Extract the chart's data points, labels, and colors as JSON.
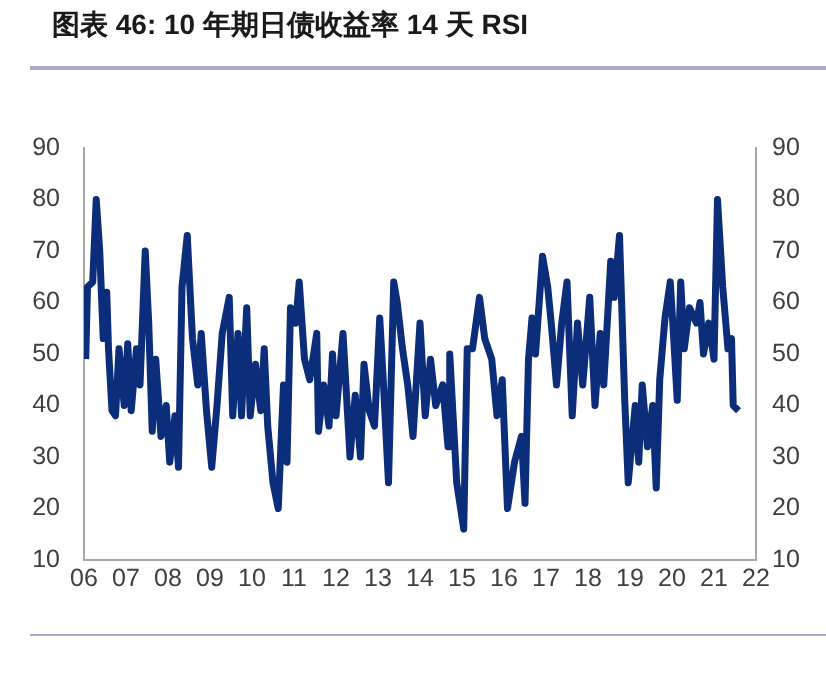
{
  "chart_data": {
    "type": "line",
    "title": "图表 46: 10 年期日债收益率 14 天 RSI",
    "series": [
      {
        "color": "#0b2d7a",
        "x": [
          "2006-01-16",
          "2006-02-01",
          "2006-03-16",
          "2006-04-16",
          "2006-05-16",
          "2006-06-16",
          "2006-07-16",
          "2006-08-01",
          "2006-09-01",
          "2006-10-01",
          "2006-11-01",
          "2006-12-16",
          "2007-01-16",
          "2007-02-16",
          "2007-04-01",
          "2007-05-01",
          "2007-06-16",
          "2007-07-16",
          "2007-08-16",
          "2007-09-16",
          "2007-11-01",
          "2007-12-16",
          "2008-01-16",
          "2008-03-01",
          "2008-04-01",
          "2008-05-01",
          "2008-06-16",
          "2008-08-01",
          "2008-09-16",
          "2008-10-16",
          "2008-12-01",
          "2009-01-16",
          "2009-03-01",
          "2009-04-16",
          "2009-06-16",
          "2009-07-16",
          "2009-09-01",
          "2009-10-01",
          "2009-11-16",
          "2009-12-16",
          "2010-02-01",
          "2010-03-16",
          "2010-04-16",
          "2010-05-16",
          "2010-07-01",
          "2010-08-16",
          "2010-10-01",
          "2010-11-01",
          "2010-12-01",
          "2011-01-16",
          "2011-02-16",
          "2011-04-01",
          "2011-05-16",
          "2011-07-16",
          "2011-08-01",
          "2011-09-16",
          "2011-11-01",
          "2011-12-01",
          "2012-01-01",
          "2012-03-01",
          "2012-05-01",
          "2012-06-16",
          "2012-08-01",
          "2012-09-01",
          "2012-10-16",
          "2012-12-01",
          "2013-01-16",
          "2013-02-16",
          "2013-04-01",
          "2013-05-16",
          "2013-06-16",
          "2013-08-01",
          "2013-09-16",
          "2013-11-01",
          "2014-01-01",
          "2014-02-16",
          "2014-04-01",
          "2014-05-16",
          "2014-07-16",
          "2014-09-01",
          "2014-09-16",
          "2014-11-16",
          "2015-01-16",
          "2015-02-16",
          "2015-04-01",
          "2015-06-01",
          "2015-07-16",
          "2015-09-16",
          "2015-11-01",
          "2015-12-16",
          "2016-02-01",
          "2016-04-01",
          "2016-06-01",
          "2016-07-01",
          "2016-08-01",
          "2016-09-01",
          "2016-10-01",
          "2016-12-01",
          "2017-01-16",
          "2017-02-16",
          "2017-04-01",
          "2017-05-16",
          "2017-07-01",
          "2017-08-16",
          "2017-10-01",
          "2017-11-16",
          "2018-01-16",
          "2018-03-01",
          "2018-04-16",
          "2018-05-16",
          "2018-07-16",
          "2018-08-16",
          "2018-10-01",
          "2018-11-16",
          "2018-12-16",
          "2019-02-16",
          "2019-03-16",
          "2019-04-16",
          "2019-06-01",
          "2019-07-16",
          "2019-08-16",
          "2019-09-16",
          "2019-11-01",
          "2019-12-16",
          "2020-01-16",
          "2020-02-16",
          "2020-03-16",
          "2020-04-16",
          "2020-06-01",
          "2020-08-01",
          "2020-09-01",
          "2020-10-01",
          "2020-11-16",
          "2021-01-01",
          "2021-02-01",
          "2021-03-16",
          "2021-05-01",
          "2021-06-01",
          "2021-06-16",
          "2021-08-01"
        ],
        "values": [
          49,
          63,
          64,
          80,
          70,
          53,
          62,
          51,
          39,
          38,
          51,
          40,
          52,
          39,
          51,
          44,
          70,
          56,
          35,
          49,
          34,
          40,
          29,
          38,
          28,
          63,
          73,
          53,
          44,
          54,
          39,
          28,
          40,
          54,
          61,
          38,
          54,
          38,
          59,
          38,
          48,
          39,
          51,
          36,
          25,
          20,
          44,
          29,
          59,
          56,
          64,
          49,
          45,
          54,
          35,
          44,
          36,
          50,
          38,
          54,
          30,
          42,
          30,
          48,
          39,
          36,
          57,
          45,
          25,
          64,
          60,
          51,
          44,
          34,
          56,
          38,
          49,
          40,
          44,
          32,
          50,
          25,
          16,
          51,
          51,
          61,
          53,
          49,
          38,
          45,
          20,
          29,
          34,
          21,
          49,
          57,
          50,
          69,
          63,
          56,
          44,
          56,
          64,
          38,
          56,
          44,
          61,
          40,
          54,
          44,
          68,
          61,
          73,
          41,
          25,
          40,
          29,
          44,
          32,
          40,
          24,
          45,
          57,
          64,
          53,
          41,
          64,
          51,
          59,
          56,
          60,
          50,
          56,
          49,
          80,
          63,
          51,
          53,
          40,
          39
        ]
      }
    ],
    "xlim": [
      "2006",
      "2022"
    ],
    "xticks": [
      {
        "value": "2006",
        "label": "06"
      },
      {
        "value": "2007",
        "label": "07"
      },
      {
        "value": "2008",
        "label": "08"
      },
      {
        "value": "2009",
        "label": "09"
      },
      {
        "value": "2010",
        "label": "10"
      },
      {
        "value": "2011",
        "label": "11"
      },
      {
        "value": "2012",
        "label": "12"
      },
      {
        "value": "2013",
        "label": "13"
      },
      {
        "value": "2014",
        "label": "14"
      },
      {
        "value": "2015",
        "label": "15"
      },
      {
        "value": "2016",
        "label": "16"
      },
      {
        "value": "2017",
        "label": "17"
      },
      {
        "value": "2018",
        "label": "18"
      },
      {
        "value": "2019",
        "label": "19"
      },
      {
        "value": "2020",
        "label": "20"
      },
      {
        "value": "2021",
        "label": "21"
      },
      {
        "value": "2022",
        "label": "22"
      }
    ],
    "ylim": [
      10,
      90
    ],
    "yticks": [
      10,
      20,
      30,
      40,
      50,
      60,
      70,
      80,
      90
    ],
    "y2lim": [
      10,
      90
    ],
    "y2ticks": [
      10,
      20,
      30,
      40,
      50,
      60,
      70,
      80,
      90
    ],
    "grid": false,
    "legend": false
  }
}
